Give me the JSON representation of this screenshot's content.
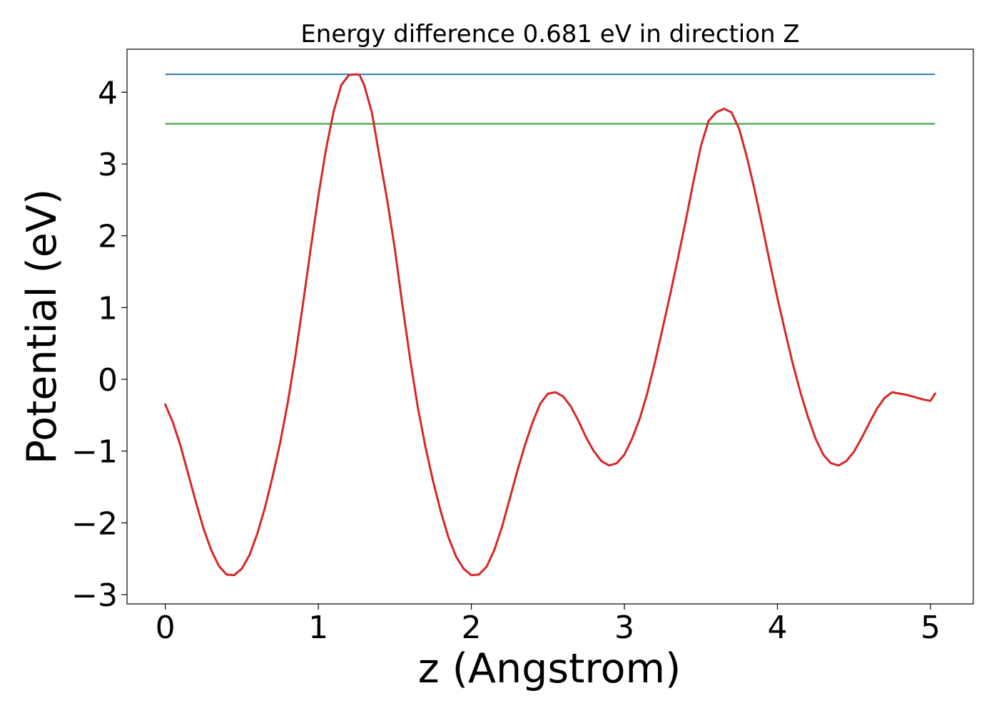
{
  "chart_data": {
    "type": "line",
    "title": "Energy difference 0.681 eV in direction Z",
    "xlabel": "z (Angstrom)",
    "ylabel": "Potential (eV)",
    "xlim": [
      -0.25,
      5.28
    ],
    "ylim": [
      -3.13,
      4.6
    ],
    "xticks": [
      {
        "value": 0,
        "label": "0"
      },
      {
        "value": 1,
        "label": "1"
      },
      {
        "value": 2,
        "label": "2"
      },
      {
        "value": 3,
        "label": "3"
      },
      {
        "value": 4,
        "label": "4"
      },
      {
        "value": 5,
        "label": "5"
      }
    ],
    "yticks": [
      {
        "value": -3,
        "label": "−3"
      },
      {
        "value": -2,
        "label": "−2"
      },
      {
        "value": -1,
        "label": "−1"
      },
      {
        "value": 0,
        "label": "0"
      },
      {
        "value": 1,
        "label": "1"
      },
      {
        "value": 2,
        "label": "2"
      },
      {
        "value": 3,
        "label": "3"
      },
      {
        "value": 4,
        "label": "4"
      }
    ],
    "grid": false,
    "legend": "none",
    "series": [
      {
        "color": "#d62728",
        "x": [
          0.0,
          0.05,
          0.1,
          0.15,
          0.2,
          0.25,
          0.3,
          0.35,
          0.4,
          0.45,
          0.5,
          0.55,
          0.6,
          0.65,
          0.7,
          0.75,
          0.8,
          0.85,
          0.9,
          0.95,
          1.0,
          1.05,
          1.1,
          1.15,
          1.2,
          1.25,
          1.27,
          1.3,
          1.35,
          1.4,
          1.45,
          1.5,
          1.55,
          1.6,
          1.65,
          1.7,
          1.75,
          1.8,
          1.85,
          1.9,
          1.95,
          2.0,
          2.05,
          2.1,
          2.15,
          2.2,
          2.25,
          2.3,
          2.35,
          2.4,
          2.45,
          2.5,
          2.55,
          2.6,
          2.65,
          2.7,
          2.75,
          2.8,
          2.85,
          2.9,
          2.95,
          3.0,
          3.05,
          3.1,
          3.15,
          3.2,
          3.25,
          3.3,
          3.35,
          3.4,
          3.45,
          3.5,
          3.55,
          3.6,
          3.65,
          3.7,
          3.75,
          3.8,
          3.85,
          3.9,
          3.95,
          4.0,
          4.05,
          4.1,
          4.15,
          4.2,
          4.25,
          4.3,
          4.35,
          4.4,
          4.45,
          4.5,
          4.55,
          4.6,
          4.65,
          4.7,
          4.75,
          4.8,
          4.85,
          4.9,
          4.95,
          5.0,
          5.03
        ],
        "y": [
          -0.35,
          -0.6,
          -0.93,
          -1.32,
          -1.71,
          -2.08,
          -2.38,
          -2.6,
          -2.72,
          -2.73,
          -2.64,
          -2.45,
          -2.16,
          -1.8,
          -1.37,
          -0.89,
          -0.33,
          0.32,
          1.05,
          1.82,
          2.55,
          3.2,
          3.73,
          4.1,
          4.24,
          4.25,
          4.24,
          4.1,
          3.72,
          3.1,
          2.5,
          1.82,
          1.03,
          0.28,
          -0.39,
          -0.94,
          -1.42,
          -1.84,
          -2.2,
          -2.47,
          -2.64,
          -2.73,
          -2.72,
          -2.61,
          -2.38,
          -2.06,
          -1.67,
          -1.28,
          -0.92,
          -0.6,
          -0.34,
          -0.2,
          -0.18,
          -0.24,
          -0.38,
          -0.58,
          -0.81,
          -1.0,
          -1.14,
          -1.2,
          -1.17,
          -1.05,
          -0.83,
          -0.55,
          -0.19,
          0.24,
          0.71,
          1.19,
          1.69,
          2.2,
          2.74,
          3.25,
          3.6,
          3.72,
          3.77,
          3.72,
          3.49,
          3.1,
          2.65,
          2.15,
          1.63,
          1.13,
          0.67,
          0.22,
          -0.18,
          -0.53,
          -0.83,
          -1.05,
          -1.17,
          -1.2,
          -1.14,
          -1.01,
          -0.82,
          -0.61,
          -0.41,
          -0.26,
          -0.18,
          -0.2,
          -0.22,
          -0.25,
          -0.28,
          -0.3,
          -0.2
        ]
      }
    ],
    "hlines": [
      {
        "y": 4.25,
        "xmin": 0.0,
        "xmax": 5.03,
        "color": "#1f77b4"
      },
      {
        "y": 3.56,
        "xmin": 0.0,
        "xmax": 5.03,
        "color": "#2ca02c"
      }
    ]
  }
}
